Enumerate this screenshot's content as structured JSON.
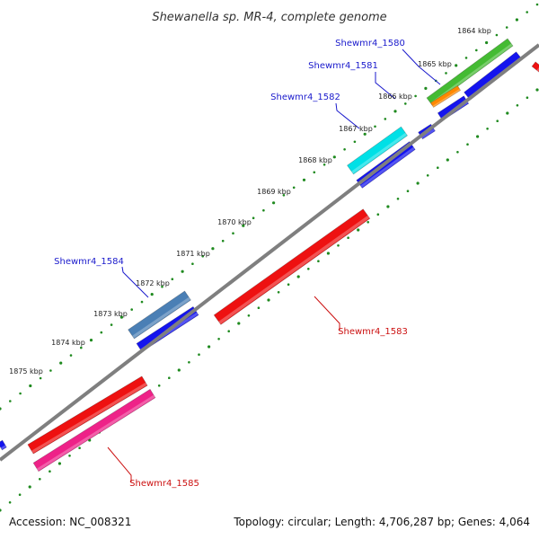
{
  "title": "Shewanella sp. MR-4, complete genome",
  "footer": {
    "accession": "Accession: NC_008321",
    "summary": "Topology: circular; Length: 4,706,287 bp; Genes: 4,064"
  },
  "colors": {
    "backbone": "#7f7f7f",
    "tick": "#1f8a1f",
    "forward_label": "#1a1acc",
    "reverse_label": "#cc1111"
  },
  "kbp_labels": [
    "1864 kbp",
    "1865 kbp",
    "1866 kbp",
    "1867 kbp",
    "1868 kbp",
    "1869 kbp",
    "1870 kbp",
    "1871 kbp",
    "1872 kbp",
    "1873 kbp",
    "1874 kbp",
    "1875 kbp"
  ],
  "genes": [
    {
      "name": "Shewmr4_1580",
      "color": "#44bb33",
      "strand": "forward"
    },
    {
      "name": "Shewmr4_1581",
      "color": "#ff8800",
      "strand": "forward"
    },
    {
      "name": "Shewmr4_1582",
      "color": "#00e0e6",
      "strand": "forward"
    },
    {
      "name": "Shewmr4_1583",
      "color": "#ee1111",
      "strand": "reverse"
    },
    {
      "name": "Shewmr4_1584",
      "color": "#4a7fb5",
      "strand": "forward"
    },
    {
      "name": "Shewmr4_1585",
      "color": "#ee2288",
      "strand": "reverse"
    }
  ]
}
